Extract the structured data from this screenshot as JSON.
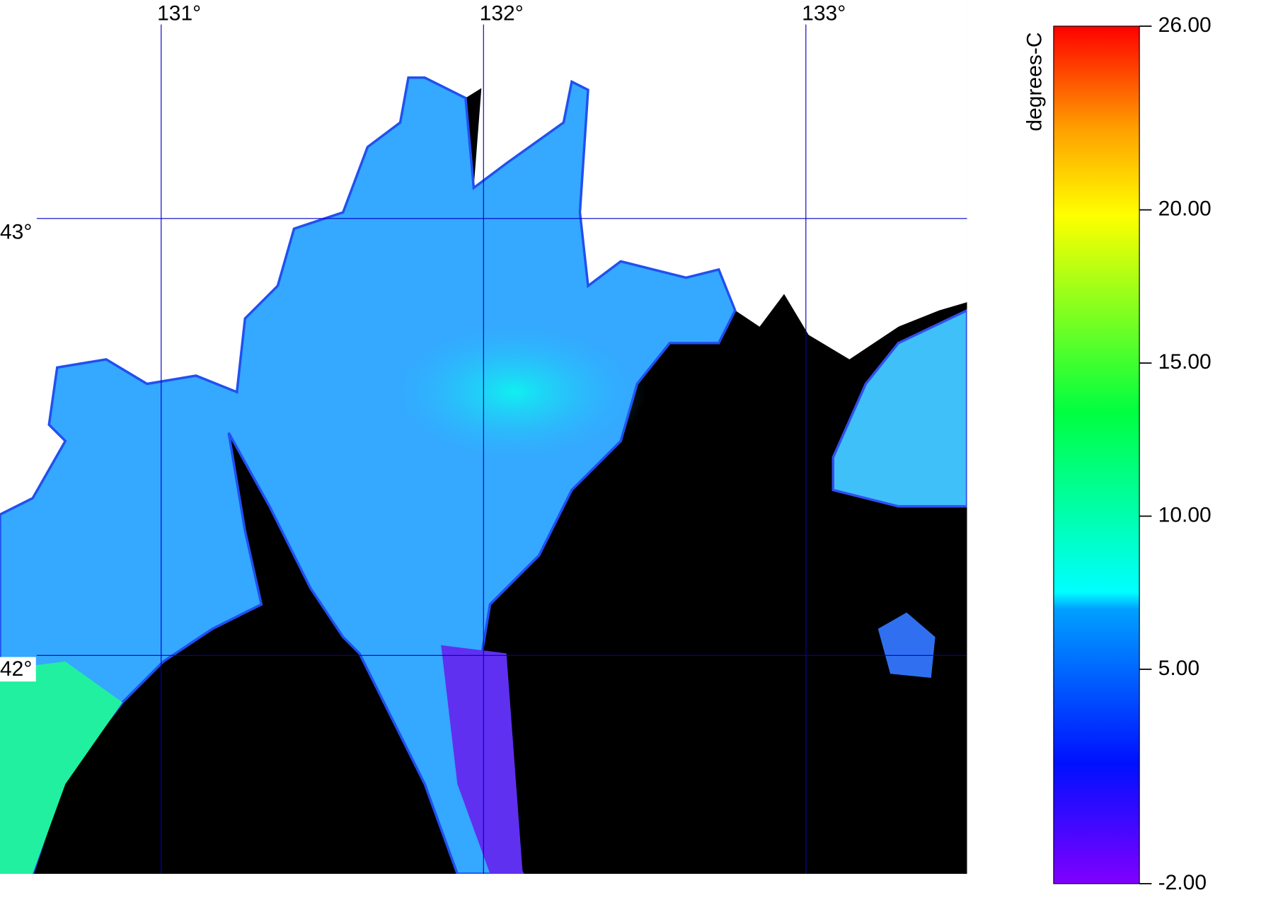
{
  "map": {
    "lonlim": [
      130.5,
      133.5
    ],
    "latlim": [
      41.5,
      43.5
    ],
    "lon_ticks": [
      {
        "value": 131,
        "label": "131°"
      },
      {
        "value": 132,
        "label": "132°"
      },
      {
        "value": 133,
        "label": "133°"
      }
    ],
    "lat_ticks": [
      {
        "value": 43,
        "label": "43°"
      },
      {
        "value": 42,
        "label": "42°"
      }
    ]
  },
  "colorbar": {
    "label": "degrees-C",
    "lim": [
      -2,
      26
    ],
    "ticks": [
      {
        "value": 26,
        "label": "26.00"
      },
      {
        "value": 20,
        "label": "20.00"
      },
      {
        "value": 15,
        "label": "15.00"
      },
      {
        "value": 10,
        "label": "10.00"
      },
      {
        "value": 5,
        "label": "5.00"
      },
      {
        "value": -2,
        "label": "-2.00"
      }
    ]
  }
}
